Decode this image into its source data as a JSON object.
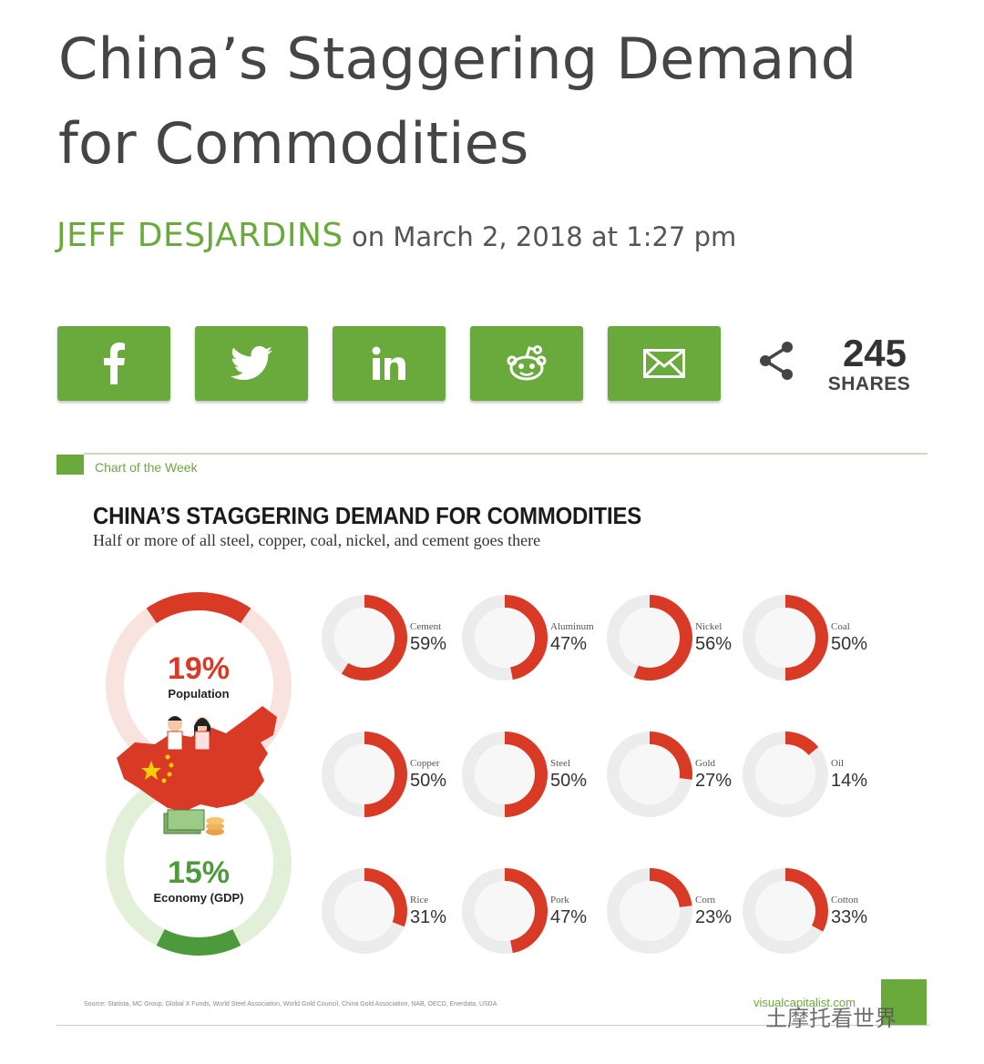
{
  "article": {
    "title": "China’s Staggering Demand for Commodities",
    "author": "JEFF DESJARDINS",
    "date_text": "on March 2, 2018 at 1:27 pm"
  },
  "share": {
    "buttons": [
      {
        "network": "facebook",
        "icon": "facebook-icon"
      },
      {
        "network": "twitter",
        "icon": "twitter-icon"
      },
      {
        "network": "linkedin",
        "icon": "linkedin-icon"
      },
      {
        "network": "reddit",
        "icon": "reddit-icon"
      },
      {
        "network": "email",
        "icon": "email-icon"
      }
    ],
    "count": "245",
    "count_label": "SHARES",
    "accent": "#6aaa3c"
  },
  "infographic": {
    "section_label": "Chart of the Week",
    "title": "CHINA’S STAGGERING DEMAND FOR COMMODITIES",
    "subtitle": "Half or more of all steel, copper, coal, nickel, and cement goes there",
    "population": {
      "pct": "19%",
      "label": "Population",
      "value": 19
    },
    "economy": {
      "pct": "15%",
      "label": "Economy (GDP)",
      "value": 15
    },
    "sources": "Source: Statista, MC Group, Global X Funds, World Steel Association, World Gold Council, China Gold Association, NAB, OECD, Enerdata, USDA",
    "site": "visualcapitalist.com",
    "colors": {
      "red": "#d83a26",
      "green": "#4d9a3c",
      "ring_bg": "#ececec"
    }
  },
  "chart_data": {
    "type": "pie",
    "title": "CHINA’S STAGGERING DEMAND FOR COMMODITIES",
    "categories": [
      "Cement",
      "Aluminum",
      "Nickel",
      "Coal",
      "Copper",
      "Steel",
      "Gold",
      "Oil",
      "Rice",
      "Pork",
      "Corn",
      "Cotton"
    ],
    "values": [
      59,
      47,
      56,
      50,
      50,
      50,
      27,
      14,
      31,
      47,
      23,
      33
    ],
    "labels": [
      "59%",
      "47%",
      "56%",
      "50%",
      "50%",
      "50%",
      "27%",
      "14%",
      "31%",
      "47%",
      "23%",
      "33%"
    ]
  },
  "watermark": "土摩托看世界"
}
